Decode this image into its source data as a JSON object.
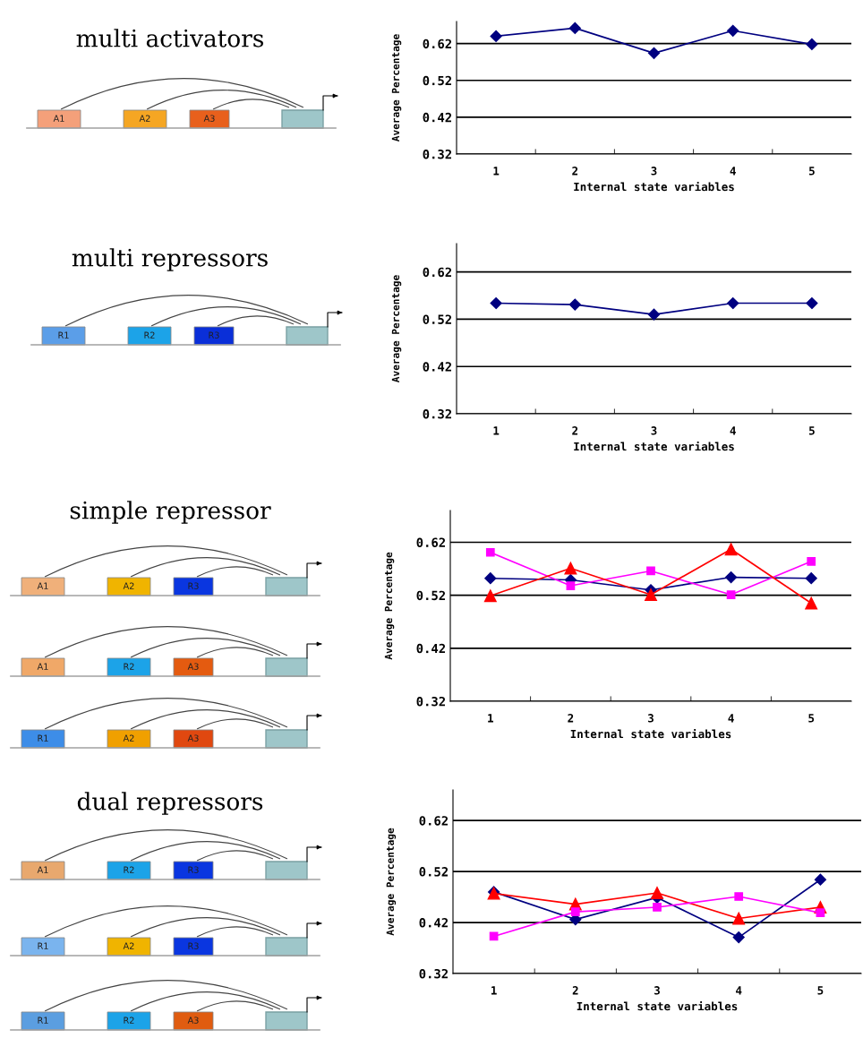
{
  "chart_data": [
    {
      "type": "other",
      "title": "multi activators",
      "annotations": [
        "A1",
        "A2",
        "A3"
      ]
    },
    {
      "type": "line",
      "xlabel": "Internal state variables",
      "ylabel": "Average Percentage",
      "categories": [
        "1",
        "2",
        "3",
        "4",
        "5"
      ],
      "ylim": [
        0.32,
        0.68
      ],
      "yticks": [
        0.32,
        0.42,
        0.52,
        0.62
      ],
      "grid": "y",
      "legend": false,
      "series": [
        {
          "color": "#000080",
          "marker": "diamond",
          "values": [
            0.64,
            0.662,
            0.594,
            0.655,
            0.618
          ]
        }
      ]
    },
    {
      "type": "other",
      "title": "multi repressors",
      "annotations": [
        "R1",
        "R2",
        "R3"
      ]
    },
    {
      "type": "line",
      "xlabel": "Internal state variables",
      "ylabel": "Average Percentage",
      "categories": [
        "1",
        "2",
        "3",
        "4",
        "5"
      ],
      "ylim": [
        0.32,
        0.68
      ],
      "yticks": [
        0.32,
        0.42,
        0.52,
        0.62
      ],
      "grid": "y",
      "legend": false,
      "series": [
        {
          "color": "#000080",
          "marker": "diamond",
          "values": [
            0.554,
            0.551,
            0.53,
            0.554,
            0.554
          ]
        }
      ]
    },
    {
      "type": "other",
      "title": "simple repressor",
      "annotations": [
        "A1",
        "A2",
        "R3",
        "A1",
        "R2",
        "A3",
        "R1",
        "A2",
        "A3"
      ]
    },
    {
      "type": "line",
      "xlabel": "Internal state variables",
      "ylabel": "Average Percentage",
      "categories": [
        "1",
        "2",
        "3",
        "4",
        "5"
      ],
      "ylim": [
        0.32,
        0.68
      ],
      "yticks": [
        0.32,
        0.42,
        0.52,
        0.62
      ],
      "grid": "y",
      "legend": false,
      "series": [
        {
          "color": "#000080",
          "marker": "diamond",
          "values": [
            0.552,
            0.549,
            0.53,
            0.554,
            0.552
          ]
        },
        {
          "color": "#ff00ff",
          "marker": "square",
          "values": [
            0.601,
            0.538,
            0.566,
            0.521,
            0.584
          ]
        },
        {
          "color": "#ff0000",
          "marker": "triangle",
          "values": [
            0.519,
            0.571,
            0.521,
            0.607,
            0.505
          ]
        }
      ]
    },
    {
      "type": "other",
      "title": "dual repressors",
      "annotations": [
        "A1",
        "R2",
        "R3",
        "R1",
        "A2",
        "R3",
        "R1",
        "R2",
        "A3"
      ]
    },
    {
      "type": "line",
      "xlabel": "Internal state variables",
      "ylabel": "Average Percentage",
      "categories": [
        "1",
        "2",
        "3",
        "4",
        "5"
      ],
      "ylim": [
        0.32,
        0.68
      ],
      "yticks": [
        0.32,
        0.42,
        0.52,
        0.62
      ],
      "grid": "y",
      "legend": false,
      "series": [
        {
          "color": "#000080",
          "marker": "diamond",
          "values": [
            0.48,
            0.426,
            0.469,
            0.391,
            0.504
          ]
        },
        {
          "color": "#ff0000",
          "marker": "triangle",
          "values": [
            0.477,
            0.456,
            0.478,
            0.428,
            0.45
          ]
        },
        {
          "color": "#ff00ff",
          "marker": "square",
          "values": [
            0.393,
            0.441,
            0.45,
            0.471,
            0.439
          ]
        }
      ]
    }
  ]
}
